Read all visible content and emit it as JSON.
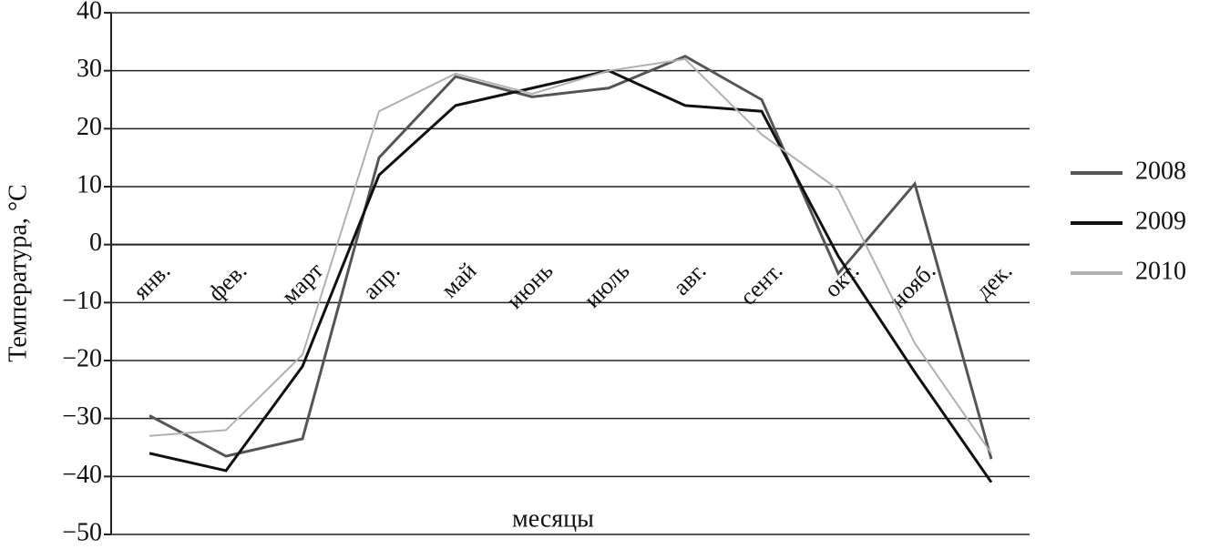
{
  "chart_data": {
    "type": "line",
    "y_label": "Температура, °C",
    "x_label": "месяцы",
    "categories": [
      "янв.",
      "фев.",
      "март",
      "апр.",
      "май",
      "июнь",
      "июль",
      "авг.",
      "сент.",
      "окт.",
      "нояб.",
      "дек."
    ],
    "series": [
      {
        "name": "2008",
        "color": "#555555",
        "values": [
          -29.5,
          -36.5,
          -33.5,
          15,
          29,
          25.5,
          27,
          32.5,
          25,
          -5,
          10.5,
          -37
        ]
      },
      {
        "name": "2009",
        "color": "#111111",
        "values": [
          -36,
          -39,
          -21,
          12,
          24,
          27,
          30,
          24,
          23,
          -2,
          -22,
          -41
        ]
      },
      {
        "name": "2010",
        "color": "#b0b0b0",
        "values": [
          -33,
          -32,
          -19,
          23,
          29.5,
          26,
          30,
          32,
          19,
          9.5,
          -17,
          -36
        ]
      }
    ],
    "ylim": [
      -50,
      40
    ],
    "yticks": [
      {
        "value": -50,
        "label": "−50"
      },
      {
        "value": -40,
        "label": "−40"
      },
      {
        "value": -30,
        "label": "−30"
      },
      {
        "value": -20,
        "label": "−20"
      },
      {
        "value": -10,
        "label": "−10"
      },
      0,
      10,
      20,
      30,
      40
    ],
    "grid": true,
    "legend": "right"
  }
}
